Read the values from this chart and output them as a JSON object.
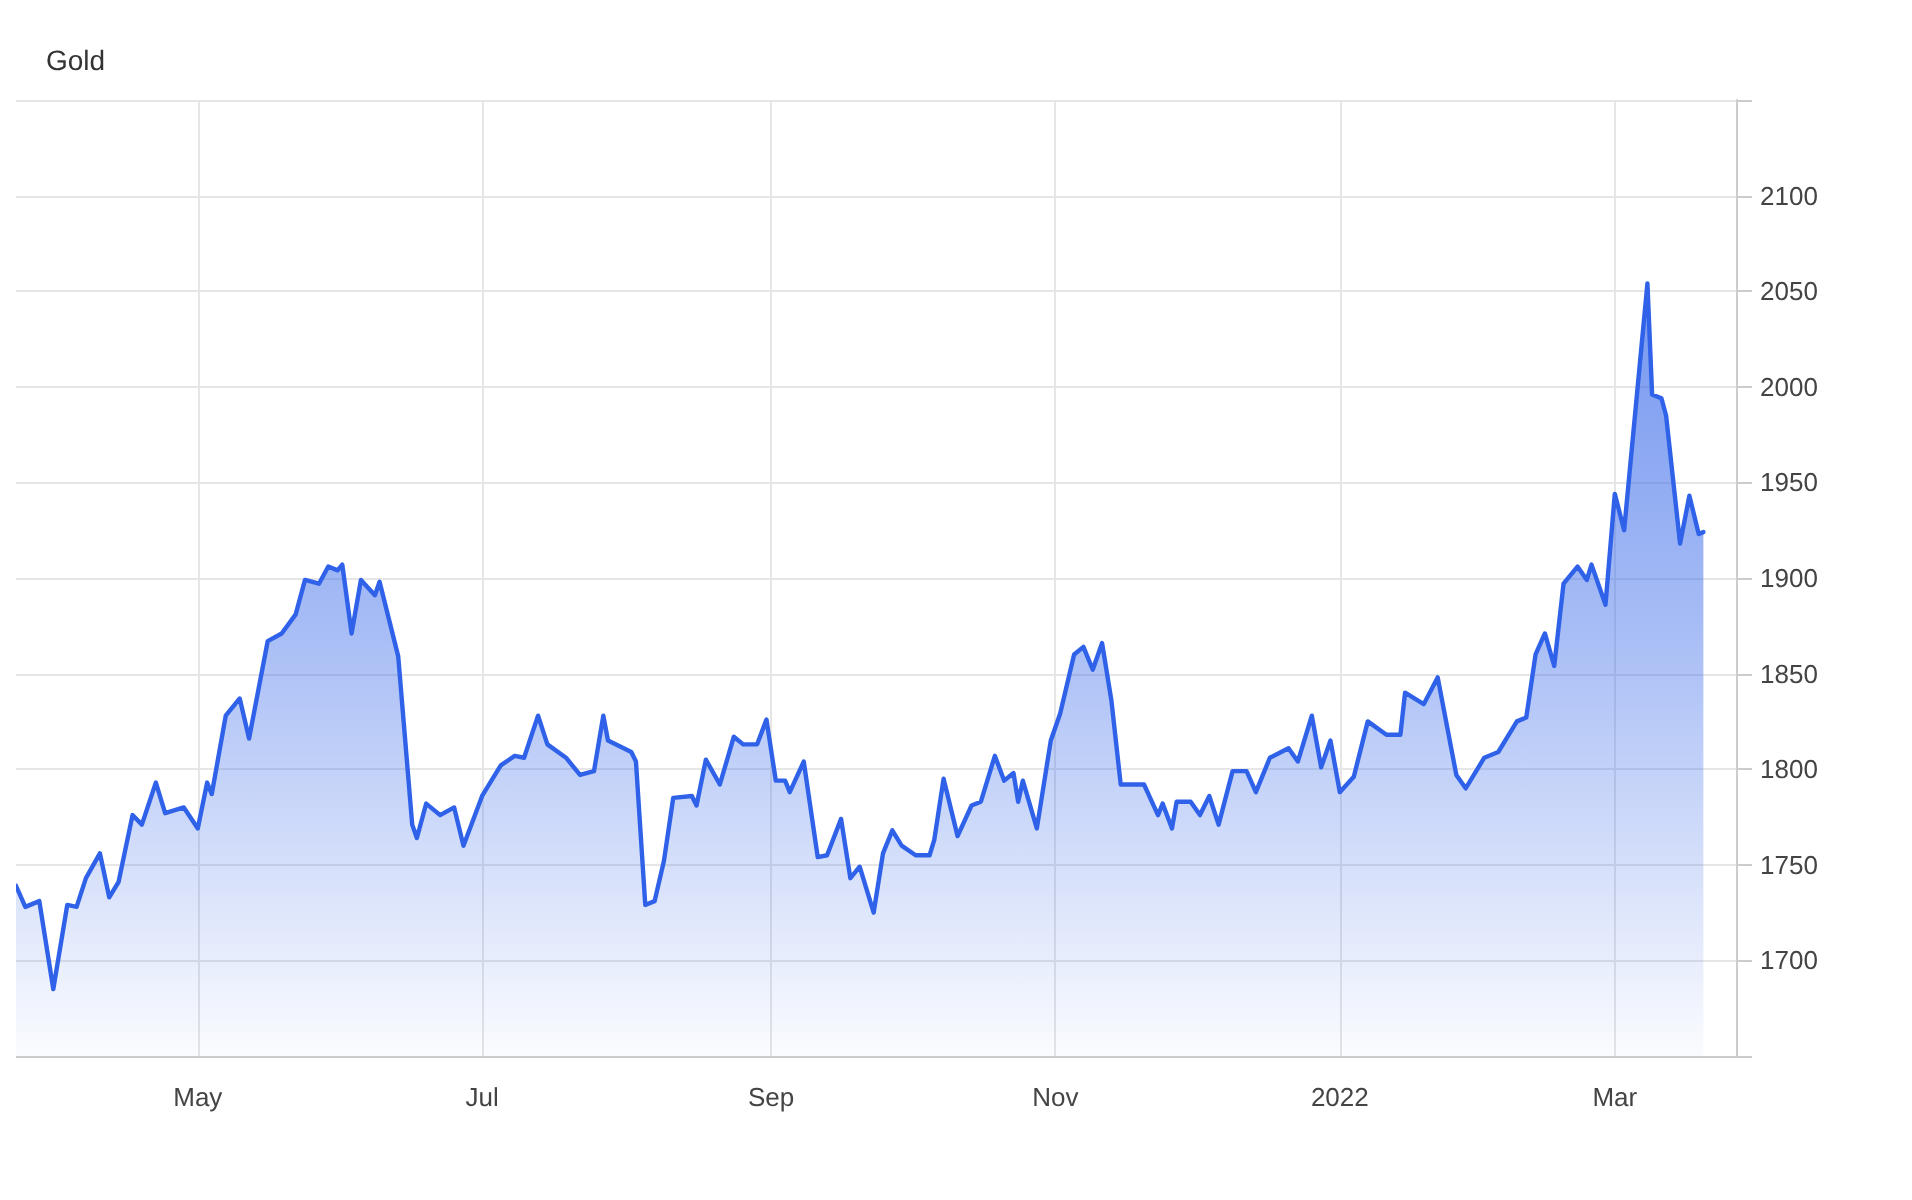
{
  "chart_data": {
    "type": "area",
    "title": "Gold",
    "x": [
      "2021-03-23",
      "2021-03-25",
      "2021-03-28",
      "2021-03-31",
      "2021-04-03",
      "2021-04-05",
      "2021-04-07",
      "2021-04-10",
      "2021-04-12",
      "2021-04-14",
      "2021-04-17",
      "2021-04-19",
      "2021-04-22",
      "2021-04-24",
      "2021-04-28",
      "2021-05-01",
      "2021-05-03",
      "2021-05-04",
      "2021-05-07",
      "2021-05-10",
      "2021-05-12",
      "2021-05-16",
      "2021-05-19",
      "2021-05-22",
      "2021-05-24",
      "2021-05-27",
      "2021-05-29",
      "2021-05-31",
      "2021-06-01",
      "2021-06-03",
      "2021-06-05",
      "2021-06-08",
      "2021-06-09",
      "2021-06-13",
      "2021-06-16",
      "2021-06-17",
      "2021-06-19",
      "2021-06-22",
      "2021-06-25",
      "2021-06-27",
      "2021-07-01",
      "2021-07-05",
      "2021-07-08",
      "2021-07-10",
      "2021-07-13",
      "2021-07-15",
      "2021-07-19",
      "2021-07-22",
      "2021-07-25",
      "2021-07-27",
      "2021-07-28",
      "2021-08-02",
      "2021-08-03",
      "2021-08-05",
      "2021-08-07",
      "2021-08-09",
      "2021-08-11",
      "2021-08-15",
      "2021-08-16",
      "2021-08-18",
      "2021-08-21",
      "2021-08-24",
      "2021-08-26",
      "2021-08-29",
      "2021-08-31",
      "2021-09-02",
      "2021-09-04",
      "2021-09-05",
      "2021-09-08",
      "2021-09-11",
      "2021-09-13",
      "2021-09-16",
      "2021-09-18",
      "2021-09-20",
      "2021-09-23",
      "2021-09-25",
      "2021-09-27",
      "2021-09-29",
      "2021-10-02",
      "2021-10-05",
      "2021-10-06",
      "2021-10-08",
      "2021-10-11",
      "2021-10-14",
      "2021-10-16",
      "2021-10-19",
      "2021-10-21",
      "2021-10-23",
      "2021-10-24",
      "2021-10-25",
      "2021-10-28",
      "2021-10-31",
      "2021-11-02",
      "2021-11-05",
      "2021-11-07",
      "2021-11-09",
      "2021-11-11",
      "2021-11-13",
      "2021-11-15",
      "2021-11-20",
      "2021-11-23",
      "2021-11-24",
      "2021-11-26",
      "2021-11-27",
      "2021-11-30",
      "2021-12-02",
      "2021-12-04",
      "2021-12-06",
      "2021-12-09",
      "2021-12-12",
      "2021-12-14",
      "2021-12-17",
      "2021-12-21",
      "2021-12-23",
      "2021-12-26",
      "2021-12-28",
      "2021-12-30",
      "2022-01-01",
      "2022-01-04",
      "2022-01-07",
      "2022-01-11",
      "2022-01-14",
      "2022-01-15",
      "2022-01-19",
      "2022-01-22",
      "2022-01-26",
      "2022-01-28",
      "2022-02-01",
      "2022-02-04",
      "2022-02-08",
      "2022-02-10",
      "2022-02-12",
      "2022-02-14",
      "2022-02-16",
      "2022-02-18",
      "2022-02-21",
      "2022-02-23",
      "2022-02-24",
      "2022-02-27",
      "2022-03-01",
      "2022-03-03",
      "2022-03-08",
      "2022-03-09",
      "2022-03-11",
      "2022-03-12",
      "2022-03-15",
      "2022-03-17",
      "2022-03-19",
      "2022-03-20"
    ],
    "series": [
      {
        "color": "#2f62e8",
        "values": [
          1739,
          1728,
          1731,
          1685,
          1729,
          1728,
          1743,
          1756,
          1733,
          1741,
          1776,
          1771,
          1793,
          1777,
          1780,
          1769,
          1793,
          1787,
          1828,
          1837,
          1816,
          1867,
          1871,
          1881,
          1899,
          1897,
          1906,
          1904,
          1907,
          1871,
          1899,
          1891,
          1898,
          1859,
          1771,
          1764,
          1782,
          1776,
          1780,
          1760,
          1786,
          1802,
          1807,
          1806,
          1828,
          1813,
          1806,
          1797,
          1799,
          1828,
          1815,
          1809,
          1804,
          1729,
          1731,
          1752,
          1785,
          1786,
          1781,
          1805,
          1792,
          1817,
          1813,
          1813,
          1826,
          1794,
          1794,
          1788,
          1804,
          1754,
          1755,
          1774,
          1743,
          1749,
          1725,
          1756,
          1768,
          1760,
          1755,
          1755,
          1763,
          1795,
          1765,
          1781,
          1783,
          1807,
          1794,
          1798,
          1783,
          1794,
          1769,
          1815,
          1829,
          1860,
          1864,
          1852,
          1866,
          1836,
          1792,
          1792,
          1776,
          1782,
          1769,
          1783,
          1783,
          1776,
          1786,
          1771,
          1799,
          1799,
          1788,
          1806,
          1811,
          1804,
          1828,
          1801,
          1815,
          1788,
          1796,
          1825,
          1818,
          1818,
          1840,
          1834,
          1848,
          1797,
          1790,
          1806,
          1809,
          1825,
          1827,
          1860,
          1871,
          1854,
          1897,
          1906,
          1899,
          1907,
          1886,
          1944,
          1925,
          2054,
          1996,
          1994,
          1985,
          1918,
          1943,
          1923,
          1924
        ]
      }
    ],
    "xlim": [
      "2021-03-23",
      "2022-03-27"
    ],
    "xticks": [
      {
        "value": "2021-05-01",
        "label": "May"
      },
      {
        "value": "2021-07-01",
        "label": "Jul"
      },
      {
        "value": "2021-09-01",
        "label": "Sep"
      },
      {
        "value": "2021-11-01",
        "label": "Nov"
      },
      {
        "value": "2022-01-01",
        "label": "2022"
      },
      {
        "value": "2022-03-01",
        "label": "Mar"
      }
    ],
    "ylim": [
      1650,
      2150
    ],
    "yticks": [
      {
        "value": 1650,
        "label": null
      },
      1700,
      1750,
      1800,
      1850,
      1900,
      1950,
      2000,
      2050,
      2100,
      {
        "value": 2150,
        "label": null
      }
    ],
    "grid": true,
    "marker": "none",
    "line_style": "solid"
  }
}
